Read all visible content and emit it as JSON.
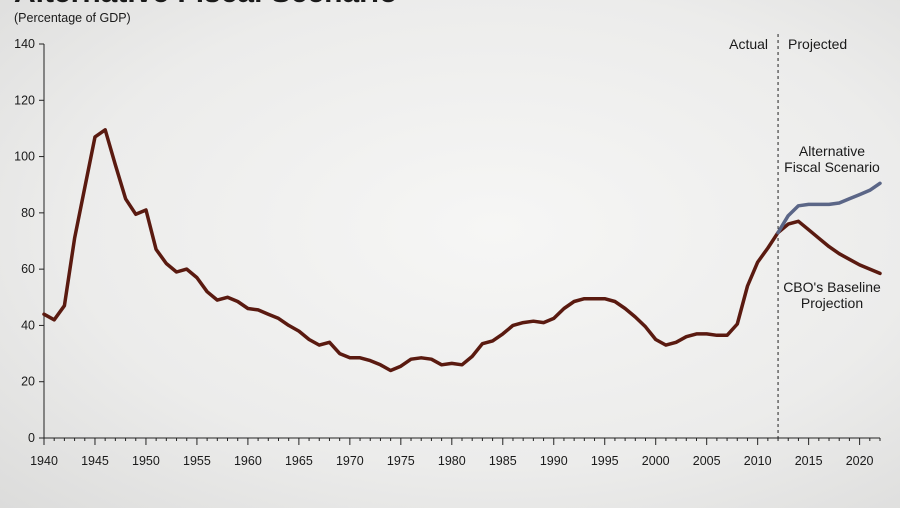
{
  "chart_data": {
    "type": "line",
    "title": "Alternative Fiscal Scenario",
    "subtitle": "(Percentage of GDP)",
    "xlabel": "",
    "ylabel": "",
    "xlim": [
      1940,
      2022
    ],
    "ylim": [
      0,
      140
    ],
    "grid": false,
    "x_ticks": [
      1940,
      1945,
      1950,
      1955,
      1960,
      1965,
      1970,
      1975,
      1980,
      1985,
      1990,
      1995,
      2000,
      2005,
      2010,
      2015,
      2020
    ],
    "y_ticks": [
      0,
      20,
      40,
      60,
      80,
      100,
      120,
      140
    ],
    "divider": {
      "x": 2012,
      "left_label": "Actual",
      "right_label": "Projected"
    },
    "series": [
      {
        "key": "baseline",
        "color": "#5a1a10",
        "label_lines": [
          "CBO's Baseline",
          "Projection"
        ],
        "points": [
          [
            1940,
            44
          ],
          [
            1941,
            42
          ],
          [
            1942,
            47
          ],
          [
            1943,
            71
          ],
          [
            1944,
            89
          ],
          [
            1945,
            107
          ],
          [
            1946,
            109.5
          ],
          [
            1947,
            97
          ],
          [
            1948,
            85
          ],
          [
            1949,
            79.5
          ],
          [
            1950,
            81
          ],
          [
            1951,
            67
          ],
          [
            1952,
            62
          ],
          [
            1953,
            59
          ],
          [
            1954,
            60
          ],
          [
            1955,
            57
          ],
          [
            1956,
            52
          ],
          [
            1957,
            49
          ],
          [
            1958,
            50
          ],
          [
            1959,
            48.5
          ],
          [
            1960,
            46
          ],
          [
            1961,
            45.5
          ],
          [
            1962,
            44
          ],
          [
            1963,
            42.5
          ],
          [
            1964,
            40
          ],
          [
            1965,
            38
          ],
          [
            1966,
            35
          ],
          [
            1967,
            33
          ],
          [
            1968,
            34
          ],
          [
            1969,
            30
          ],
          [
            1970,
            28.5
          ],
          [
            1971,
            28.5
          ],
          [
            1972,
            27.5
          ],
          [
            1973,
            26
          ],
          [
            1974,
            24
          ],
          [
            1975,
            25.5
          ],
          [
            1976,
            28
          ],
          [
            1977,
            28.5
          ],
          [
            1978,
            28
          ],
          [
            1979,
            26
          ],
          [
            1980,
            26.5
          ],
          [
            1981,
            26
          ],
          [
            1982,
            29
          ],
          [
            1983,
            33.5
          ],
          [
            1984,
            34.5
          ],
          [
            1985,
            37
          ],
          [
            1986,
            40
          ],
          [
            1987,
            41
          ],
          [
            1988,
            41.5
          ],
          [
            1989,
            41
          ],
          [
            1990,
            42.5
          ],
          [
            1991,
            46
          ],
          [
            1992,
            48.5
          ],
          [
            1993,
            49.5
          ],
          [
            1994,
            49.5
          ],
          [
            1995,
            49.5
          ],
          [
            1996,
            48.5
          ],
          [
            1997,
            46
          ],
          [
            1998,
            43
          ],
          [
            1999,
            39.5
          ],
          [
            2000,
            35
          ],
          [
            2001,
            33
          ],
          [
            2002,
            34
          ],
          [
            2003,
            36
          ],
          [
            2004,
            37
          ],
          [
            2005,
            37
          ],
          [
            2006,
            36.5
          ],
          [
            2007,
            36.5
          ],
          [
            2008,
            40.5
          ],
          [
            2009,
            54
          ],
          [
            2010,
            62.5
          ],
          [
            2011,
            67.5
          ],
          [
            2012,
            73
          ],
          [
            2013,
            76
          ],
          [
            2014,
            77
          ],
          [
            2015,
            74
          ],
          [
            2016,
            71
          ],
          [
            2017,
            68
          ],
          [
            2018,
            65.5
          ],
          [
            2019,
            63.5
          ],
          [
            2020,
            61.5
          ],
          [
            2021,
            60
          ],
          [
            2022,
            58.5
          ]
        ]
      },
      {
        "key": "alternative",
        "color": "#5b6687",
        "label_lines": [
          "Alternative",
          "Fiscal Scenario"
        ],
        "points": [
          [
            2012,
            73
          ],
          [
            2013,
            79
          ],
          [
            2014,
            82.5
          ],
          [
            2015,
            83
          ],
          [
            2016,
            83
          ],
          [
            2017,
            83
          ],
          [
            2018,
            83.5
          ],
          [
            2019,
            85
          ],
          [
            2020,
            86.5
          ],
          [
            2021,
            88
          ],
          [
            2022,
            90.5
          ]
        ]
      }
    ]
  }
}
